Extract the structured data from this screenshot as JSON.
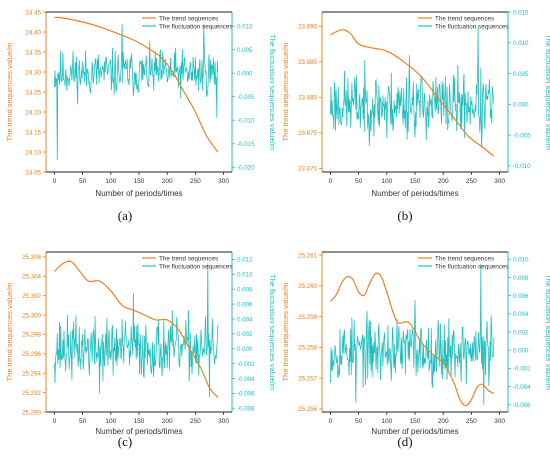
{
  "colors": {
    "trend": "#f08020",
    "fluct": "#20c0c0",
    "axis_left": "#f08020",
    "axis_right": "#20c0c0",
    "text": "#333333"
  },
  "chart_data": [
    {
      "label": "(a)",
      "type": "line",
      "xlabel": "Number of periods/times",
      "ylabel_left": "The trend sequences value/m",
      "ylabel_right": "The fluctuation sequences value/m",
      "legend": [
        "The trend sequences",
        "The fluctuation sequences"
      ],
      "legend_position": "top-right",
      "x_ticks": [
        0,
        50,
        100,
        150,
        200,
        250,
        300
      ],
      "xlim": [
        -15,
        315
      ],
      "yleft_ticks": [
        24.05,
        24.1,
        24.15,
        24.2,
        24.25,
        24.3,
        24.35,
        24.4,
        24.45
      ],
      "yleft_lim": [
        24.05,
        24.45
      ],
      "yleft_decimals": 2,
      "yright_ticks": [
        -0.02,
        -0.015,
        -0.01,
        -0.005,
        0.0,
        0.005,
        0.01
      ],
      "yright_lim": [
        -0.021,
        0.013
      ],
      "yright_decimals": 3,
      "trend_x": [
        0,
        20,
        50,
        80,
        110,
        140,
        170,
        190,
        210,
        230,
        250,
        270,
        290
      ],
      "trend_y": [
        24.437,
        24.434,
        24.425,
        24.413,
        24.397,
        24.38,
        24.356,
        24.335,
        24.3,
        24.25,
        24.2,
        24.14,
        24.1
      ],
      "fluct_n": 290,
      "fluct_seed": 11,
      "fluct_amp": 0.0042,
      "fluct_spikes": [
        [
          5,
          -0.0185
        ],
        [
          120,
          0.0105
        ],
        [
          265,
          0.0105
        ],
        [
          288,
          -0.0095
        ]
      ]
    },
    {
      "label": "(b)",
      "type": "line",
      "xlabel": "Number of periods/times",
      "ylabel_left": "The trend sequences value/m",
      "ylabel_right": "The fluctuation sequences value/m",
      "legend": [
        "The trend sequences",
        "The fluctuation sequences"
      ],
      "legend_position": "top-right",
      "x_ticks": [
        0,
        50,
        100,
        150,
        200,
        250,
        300
      ],
      "xlim": [
        -15,
        315
      ],
      "yleft_ticks": [
        23.87,
        23.875,
        23.88,
        23.885,
        23.89
      ],
      "yleft_lim": [
        23.8695,
        23.892
      ],
      "yleft_decimals": 3,
      "yright_ticks": [
        -0.01,
        -0.005,
        0.0,
        0.005,
        0.01,
        0.015
      ],
      "yright_lim": [
        -0.011,
        0.015
      ],
      "yright_decimals": 3,
      "trend_x": [
        0,
        20,
        35,
        50,
        70,
        100,
        130,
        160,
        190,
        220,
        245,
        270,
        290
      ],
      "trend_y": [
        23.8888,
        23.8895,
        23.889,
        23.8875,
        23.887,
        23.8865,
        23.885,
        23.883,
        23.88,
        23.877,
        23.8745,
        23.873,
        23.8717
      ],
      "fluct_n": 290,
      "fluct_seed": 23,
      "fluct_amp": 0.0045,
      "fluct_spikes": [
        [
          262,
          0.0125
        ],
        [
          268,
          -0.007
        ],
        [
          140,
          0.008
        ],
        [
          100,
          -0.0055
        ]
      ]
    },
    {
      "label": "(c)",
      "type": "line",
      "xlabel": "Number of periods/times",
      "ylabel_left": "The trend sequences value/m",
      "ylabel_right": "The fluctuation sequences value/m",
      "legend": [
        "The trend sequences",
        "The fluctuation sequences"
      ],
      "legend_position": "top-right",
      "x_ticks": [
        0,
        50,
        100,
        150,
        200,
        250,
        300
      ],
      "xlim": [
        -15,
        315
      ],
      "yleft_ticks": [
        25.29,
        25.292,
        25.294,
        25.296,
        25.298,
        25.3,
        25.302,
        25.304,
        25.306
      ],
      "yleft_lim": [
        25.29,
        25.3065
      ],
      "yleft_decimals": 3,
      "yright_ticks": [
        -0.008,
        -0.006,
        -0.004,
        -0.002,
        0.0,
        0.002,
        0.004,
        0.006,
        0.008,
        0.01,
        0.012
      ],
      "yright_lim": [
        -0.0085,
        0.013
      ],
      "yright_decimals": 3,
      "trend_x": [
        0,
        15,
        30,
        45,
        60,
        80,
        100,
        120,
        140,
        160,
        180,
        200,
        220,
        240,
        260,
        275,
        290
      ],
      "trend_y": [
        25.3045,
        25.3053,
        25.3055,
        25.3045,
        25.3035,
        25.3035,
        25.3025,
        25.301,
        25.3005,
        25.3,
        25.2995,
        25.2995,
        25.2985,
        25.2965,
        25.2945,
        25.2925,
        25.2915
      ],
      "fluct_n": 290,
      "fluct_seed": 37,
      "fluct_amp": 0.0035,
      "fluct_spikes": [
        [
          272,
          0.0115
        ],
        [
          275,
          -0.0065
        ],
        [
          140,
          0.0075
        ],
        [
          80,
          -0.006
        ]
      ]
    },
    {
      "label": "(d)",
      "type": "line",
      "xlabel": "Number of periods/times",
      "ylabel_left": "The trend sequences value/m",
      "ylabel_right": "The fluctuation sequences value/m",
      "legend": [
        "The trend sequences",
        "The fluctuation sequences"
      ],
      "legend_position": "top-right",
      "x_ticks": [
        0,
        50,
        100,
        150,
        200,
        250,
        300
      ],
      "xlim": [
        -15,
        315
      ],
      "yleft_ticks": [
        25.256,
        25.257,
        25.258,
        25.259,
        25.26,
        25.261
      ],
      "yleft_lim": [
        25.2559,
        25.2611
      ],
      "yleft_decimals": 3,
      "yright_ticks": [
        -0.006,
        -0.004,
        -0.002,
        0.0,
        0.002,
        0.004,
        0.006,
        0.008,
        0.01
      ],
      "yright_lim": [
        -0.0068,
        0.0108
      ],
      "yright_decimals": 3,
      "trend_x": [
        0,
        10,
        20,
        30,
        40,
        50,
        60,
        70,
        80,
        90,
        100,
        110,
        120,
        140,
        160,
        180,
        200,
        210,
        220,
        230,
        240,
        250,
        260,
        270,
        280,
        290
      ],
      "trend_y": [
        25.2595,
        25.2597,
        25.2601,
        25.2603,
        25.2602,
        25.2598,
        25.2597,
        25.2601,
        25.2604,
        25.2603,
        25.2598,
        25.2592,
        25.2588,
        25.2588,
        25.2582,
        25.2578,
        25.2575,
        25.2572,
        25.2568,
        25.2563,
        25.2561,
        25.2563,
        25.2567,
        25.2568,
        25.2566,
        25.2565
      ],
      "fluct_n": 290,
      "fluct_seed": 53,
      "fluct_amp": 0.003,
      "fluct_spikes": [
        [
          267,
          0.0095
        ],
        [
          272,
          -0.006
        ],
        [
          45,
          -0.0058
        ],
        [
          150,
          0.0055
        ]
      ]
    }
  ]
}
